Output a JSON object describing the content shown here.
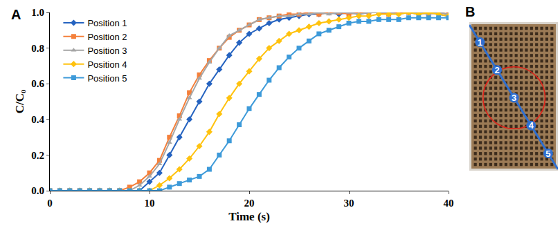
{
  "chart_data": {
    "type": "line",
    "panel_label": "A",
    "x_label": "Time (s)",
    "y_label": "C/C₀",
    "x": [
      0,
      1,
      2,
      3,
      4,
      5,
      6,
      7,
      8,
      9,
      10,
      11,
      12,
      13,
      14,
      15,
      16,
      17,
      18,
      19,
      20,
      21,
      22,
      23,
      24,
      25,
      26,
      27,
      28,
      29,
      30,
      31,
      32,
      33,
      34,
      35,
      36,
      37,
      38,
      39,
      40
    ],
    "series": [
      {
        "name": "Position 1",
        "color": "#2563c0",
        "marker": "diamond",
        "values": [
          0,
          0,
          0,
          0,
          0,
          0,
          0,
          0,
          0,
          0,
          0.05,
          0.1,
          0.2,
          0.3,
          0.4,
          0.5,
          0.6,
          0.68,
          0.76,
          0.83,
          0.88,
          0.91,
          0.94,
          0.96,
          0.97,
          0.98,
          0.99,
          0.99,
          1.0,
          0.99,
          1.0,
          0.99,
          1.0,
          1.0,
          0.99,
          1.0,
          1.0,
          0.99,
          1.0,
          0.99,
          0.98
        ]
      },
      {
        "name": "Position 2",
        "color": "#f47f3a",
        "marker": "square",
        "values": [
          0,
          0,
          0,
          0,
          0,
          0,
          0,
          0,
          0.02,
          0.05,
          0.1,
          0.17,
          0.3,
          0.42,
          0.55,
          0.65,
          0.73,
          0.8,
          0.86,
          0.9,
          0.93,
          0.96,
          0.97,
          0.98,
          0.99,
          0.99,
          1.0,
          0.99,
          1.0,
          1.0,
          0.99,
          1.0,
          1.0,
          1.0,
          0.99,
          1.0,
          1.0,
          1.0,
          0.99,
          1.0,
          0.99
        ]
      },
      {
        "name": "Position 3",
        "color": "#a6a6a6",
        "marker": "triangle-up",
        "values": [
          0,
          0,
          0,
          0,
          0,
          0,
          0,
          0,
          0,
          0.03,
          0.08,
          0.15,
          0.27,
          0.4,
          0.52,
          0.63,
          0.72,
          0.8,
          0.87,
          0.9,
          0.93,
          0.96,
          0.97,
          0.98,
          0.98,
          0.99,
          0.99,
          1.0,
          0.99,
          1.0,
          1.0,
          0.99,
          1.0,
          1.0,
          1.0,
          0.99,
          1.0,
          1.0,
          0.99,
          1.0,
          0.99
        ]
      },
      {
        "name": "Position 4",
        "color": "#ffc20e",
        "marker": "diamond",
        "values": [
          0,
          0,
          0,
          0,
          0,
          0,
          0,
          0,
          0,
          0,
          0,
          0.03,
          0.07,
          0.12,
          0.18,
          0.25,
          0.33,
          0.43,
          0.52,
          0.6,
          0.67,
          0.74,
          0.8,
          0.84,
          0.88,
          0.9,
          0.92,
          0.94,
          0.95,
          0.96,
          0.97,
          0.98,
          0.98,
          0.99,
          0.99,
          0.99,
          1.0,
          0.99,
          1.0,
          0.99,
          0.98
        ]
      },
      {
        "name": "Position 5",
        "color": "#3d9ad9",
        "marker": "square",
        "values": [
          0,
          0,
          0,
          0,
          0,
          0,
          0,
          0,
          0,
          0,
          0,
          0,
          0.02,
          0.04,
          0.06,
          0.08,
          0.12,
          0.2,
          0.28,
          0.37,
          0.46,
          0.54,
          0.62,
          0.69,
          0.75,
          0.8,
          0.84,
          0.88,
          0.9,
          0.92,
          0.94,
          0.95,
          0.95,
          0.96,
          0.96,
          0.96,
          0.97,
          0.97,
          0.97,
          0.97,
          0.97
        ]
      }
    ],
    "xlim": [
      0,
      40
    ],
    "xticks": [
      0,
      10,
      20,
      30,
      40
    ],
    "ylim": [
      0,
      1
    ],
    "yticks": [
      {
        "value": 0,
        "label": "0.0"
      },
      0.2,
      0.4,
      0.6,
      0.8,
      {
        "value": 1,
        "label": "1.0"
      }
    ],
    "grid": false,
    "legend": "upper left"
  },
  "panel_b": {
    "panel_label": "B",
    "position_labels": [
      "1",
      "2",
      "3",
      "4",
      "5"
    ]
  }
}
